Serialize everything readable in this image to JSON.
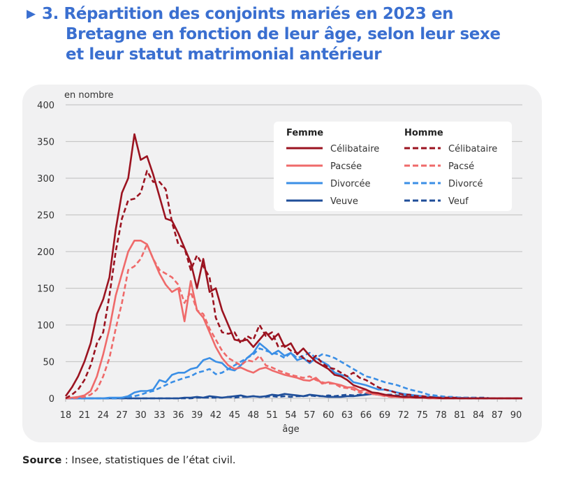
{
  "header": {
    "title_lines": [
      "3. Répartition des conjoints mariés en 2023 en",
      "Bretagne en fonction de leur âge, selon leur sexe",
      "et leur statut matrimonial antérieur"
    ],
    "arrow_icon": "triangle-right-icon"
  },
  "footer": {
    "source_label": "Source",
    "source_text": " : Insee, statistiques de l’état civil."
  },
  "chart_data": {
    "type": "line",
    "title": "3. Répartition des conjoints mariés en 2023 en Bretagne en fonction de leur âge, selon leur sexe et leur statut matrimonial antérieur",
    "xlabel": "âge",
    "ylabel": "en nombre",
    "xlim": [
      18,
      91
    ],
    "ylim": [
      0,
      400
    ],
    "yticks": [
      0,
      50,
      100,
      150,
      200,
      250,
      300,
      350,
      400
    ],
    "xticks": [
      18,
      21,
      24,
      27,
      30,
      33,
      36,
      39,
      42,
      45,
      48,
      51,
      54,
      57,
      60,
      63,
      66,
      69,
      72,
      75,
      78,
      81,
      84,
      87,
      90
    ],
    "grid": "horizontal",
    "legend": {
      "placement": "top-right",
      "groups": [
        {
          "title": "Femme",
          "entries": [
            "Célibataire",
            "Pacsée",
            "Divorcée",
            "Veuve"
          ]
        },
        {
          "title": "Homme",
          "entries": [
            "Célibataire",
            "Pacsé",
            "Divorcé",
            "Veuf"
          ]
        }
      ]
    },
    "x_start": 18,
    "series": [
      {
        "name": "Femme – Célibataire",
        "sex": "Femme",
        "color": "#9b1320",
        "dash": false,
        "values": [
          3,
          15,
          30,
          50,
          75,
          115,
          135,
          165,
          230,
          280,
          300,
          360,
          325,
          330,
          305,
          275,
          245,
          242,
          225,
          205,
          185,
          150,
          190,
          145,
          150,
          120,
          100,
          80,
          78,
          80,
          70,
          80,
          90,
          80,
          88,
          70,
          75,
          60,
          68,
          58,
          50,
          45,
          40,
          32,
          30,
          25,
          18,
          15,
          12,
          8,
          7,
          5,
          4,
          3,
          2,
          2,
          1,
          1,
          1,
          1,
          0,
          0,
          0,
          0,
          0,
          0,
          0,
          0,
          0,
          0,
          0,
          0,
          0,
          0
        ]
      },
      {
        "name": "Femme – Pacsée",
        "sex": "Femme",
        "color": "#ef6a6a",
        "dash": false,
        "values": [
          0,
          1,
          2,
          4,
          10,
          30,
          60,
          95,
          140,
          170,
          200,
          215,
          215,
          210,
          190,
          170,
          155,
          145,
          150,
          105,
          160,
          120,
          110,
          90,
          70,
          55,
          45,
          40,
          42,
          38,
          35,
          40,
          42,
          38,
          35,
          32,
          30,
          28,
          25,
          24,
          28,
          20,
          22,
          20,
          18,
          15,
          15,
          10,
          12,
          6,
          5,
          4,
          2,
          2,
          1,
          1,
          1,
          1,
          0,
          0,
          0,
          0,
          0,
          0,
          0,
          0,
          0,
          0,
          0,
          0,
          0,
          0,
          0,
          0
        ]
      },
      {
        "name": "Femme – Divorcée",
        "sex": "Femme",
        "color": "#3b8fe6",
        "dash": false,
        "values": [
          0,
          0,
          0,
          0,
          0,
          0,
          0,
          1,
          1,
          1,
          3,
          8,
          10,
          10,
          12,
          25,
          22,
          32,
          35,
          35,
          40,
          42,
          52,
          55,
          50,
          48,
          40,
          38,
          45,
          55,
          62,
          75,
          68,
          60,
          65,
          58,
          62,
          52,
          55,
          48,
          55,
          50,
          45,
          35,
          32,
          30,
          22,
          20,
          18,
          15,
          12,
          12,
          10,
          8,
          6,
          5,
          4,
          3,
          2,
          2,
          1,
          1,
          1,
          1,
          0,
          0,
          0,
          0,
          0,
          0,
          0,
          0,
          0,
          0
        ]
      },
      {
        "name": "Femme – Veuve",
        "sex": "Femme",
        "color": "#1f4e99",
        "dash": false,
        "values": [
          0,
          0,
          0,
          0,
          0,
          0,
          0,
          0,
          0,
          0,
          0,
          0,
          0,
          0,
          0,
          0,
          0,
          0,
          0,
          1,
          1,
          2,
          1,
          3,
          2,
          1,
          2,
          3,
          4,
          2,
          3,
          2,
          3,
          5,
          4,
          6,
          5,
          4,
          3,
          5,
          4,
          3,
          2,
          2,
          2,
          3,
          3,
          4,
          5,
          6,
          5,
          4,
          3,
          3,
          2,
          2,
          2,
          1,
          1,
          1,
          1,
          1,
          0,
          1,
          0,
          0,
          0,
          0,
          0,
          0,
          0,
          0,
          0,
          0
        ]
      },
      {
        "name": "Homme – Célibataire",
        "sex": "Homme",
        "color": "#9b1320",
        "dash": true,
        "values": [
          0,
          5,
          12,
          25,
          45,
          75,
          90,
          140,
          200,
          245,
          270,
          272,
          280,
          310,
          295,
          295,
          285,
          240,
          210,
          205,
          175,
          195,
          180,
          165,
          110,
          90,
          88,
          90,
          75,
          85,
          80,
          100,
          85,
          90,
          70,
          72,
          65,
          62,
          55,
          50,
          58,
          48,
          42,
          40,
          35,
          30,
          35,
          28,
          25,
          20,
          15,
          12,
          10,
          7,
          5,
          5,
          3,
          3,
          2,
          1,
          1,
          1,
          1,
          0,
          0,
          0,
          0,
          0,
          0,
          0,
          0,
          0,
          0,
          0
        ]
      },
      {
        "name": "Homme – Pacsé",
        "sex": "Homme",
        "color": "#ef6a6a",
        "dash": true,
        "values": [
          0,
          0,
          1,
          2,
          5,
          12,
          30,
          55,
          95,
          130,
          175,
          180,
          190,
          210,
          190,
          175,
          170,
          165,
          155,
          130,
          145,
          120,
          115,
          95,
          80,
          65,
          55,
          50,
          45,
          52,
          50,
          58,
          45,
          42,
          38,
          35,
          32,
          30,
          28,
          30,
          25,
          22,
          20,
          20,
          15,
          14,
          12,
          8,
          8,
          6,
          5,
          3,
          2,
          2,
          1,
          1,
          1,
          1,
          0,
          0,
          0,
          0,
          0,
          0,
          0,
          0,
          0,
          0,
          0,
          0,
          0,
          0,
          0,
          0
        ]
      },
      {
        "name": "Homme – Divorcé",
        "sex": "Homme",
        "color": "#3b8fe6",
        "dash": true,
        "values": [
          0,
          0,
          0,
          0,
          0,
          0,
          0,
          0,
          0,
          1,
          2,
          3,
          5,
          8,
          10,
          14,
          18,
          22,
          25,
          28,
          30,
          35,
          37,
          40,
          33,
          35,
          40,
          45,
          50,
          55,
          60,
          68,
          65,
          62,
          60,
          55,
          62,
          55,
          58,
          62,
          55,
          60,
          58,
          55,
          50,
          45,
          40,
          35,
          30,
          28,
          25,
          22,
          20,
          18,
          15,
          12,
          10,
          8,
          5,
          4,
          3,
          2,
          2,
          1,
          1,
          1,
          0,
          0,
          0,
          0,
          0,
          0,
          0,
          0
        ]
      },
      {
        "name": "Homme – Veuf",
        "sex": "Homme",
        "color": "#1f4e99",
        "dash": true,
        "values": [
          0,
          0,
          0,
          0,
          0,
          0,
          0,
          0,
          0,
          0,
          0,
          0,
          0,
          0,
          0,
          0,
          0,
          0,
          0,
          0,
          0,
          1,
          1,
          1,
          1,
          1,
          2,
          1,
          2,
          2,
          3,
          2,
          2,
          3,
          2,
          3,
          2,
          3,
          3,
          4,
          3,
          3,
          4,
          3,
          4,
          5,
          4,
          5,
          6,
          7,
          6,
          5,
          5,
          4,
          3,
          3,
          3,
          2,
          2,
          2,
          1,
          1,
          1,
          1,
          1,
          1,
          1,
          1,
          0,
          0,
          0,
          0,
          0,
          0
        ]
      }
    ]
  }
}
